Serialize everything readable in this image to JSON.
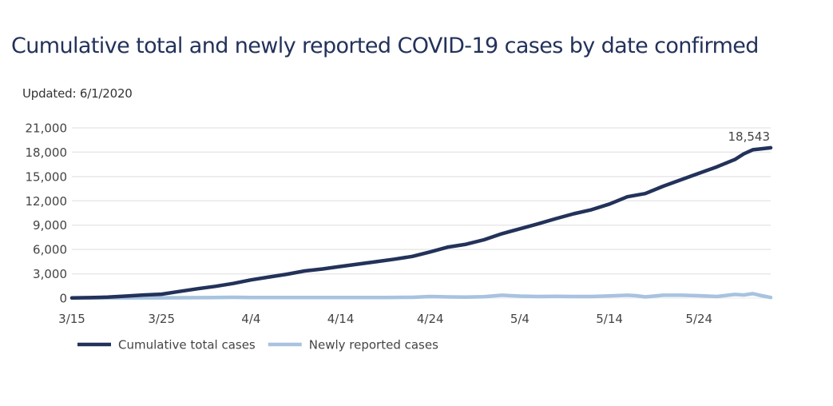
{
  "chart_data": {
    "type": "line",
    "title": "Cumulative total and newly reported COVID-19 cases by date confirmed",
    "subtitle": "Updated: 6/1/2020",
    "xlabel": "",
    "ylabel": "",
    "x_start_date": "2020-03-15",
    "x_end_date": "2020-06-01",
    "x_ticks": [
      "3/15",
      "3/25",
      "4/4",
      "4/14",
      "4/24",
      "5/4",
      "5/14",
      "5/24"
    ],
    "x_tick_day_offsets": [
      0,
      10,
      20,
      30,
      40,
      50,
      60,
      70
    ],
    "ylim": [
      0,
      21000
    ],
    "y_ticks": [
      0,
      3000,
      6000,
      9000,
      12000,
      15000,
      18000,
      21000
    ],
    "y_tick_labels": [
      "0",
      "3,000",
      "6,000",
      "9,000",
      "12,000",
      "15,000",
      "18,000",
      "21,000"
    ],
    "grid": true,
    "legend_position": "bottom-left",
    "annotations": [
      {
        "series": "Cumulative total cases",
        "date": "6/1",
        "label": "18,543",
        "value": 18543
      }
    ],
    "series": [
      {
        "name": "Cumulative total cases",
        "color": "#23325a",
        "day_offsets": [
          0,
          2,
          4,
          6,
          8,
          10,
          12,
          14,
          16,
          18,
          20,
          22,
          24,
          26,
          28,
          30,
          32,
          34,
          36,
          38,
          40,
          42,
          44,
          46,
          48,
          50,
          52,
          54,
          56,
          58,
          60,
          62,
          64,
          66,
          68,
          70,
          72,
          74,
          75,
          76,
          78
        ],
        "values": [
          20,
          60,
          120,
          250,
          380,
          480,
          820,
          1150,
          1450,
          1800,
          2250,
          2600,
          2950,
          3350,
          3600,
          3900,
          4200,
          4500,
          4800,
          5150,
          5700,
          6300,
          6650,
          7200,
          7950,
          8550,
          9150,
          9800,
          10400,
          10900,
          11600,
          12500,
          12900,
          13800,
          14600,
          15400,
          16200,
          17100,
          17800,
          18300,
          18543
        ]
      },
      {
        "name": "Newly reported cases",
        "color": "#a7c3e0",
        "day_offsets": [
          0,
          5,
          10,
          15,
          18,
          20,
          25,
          30,
          35,
          38,
          40,
          42,
          44,
          46,
          48,
          50,
          52,
          54,
          56,
          58,
          60,
          62,
          63,
          64,
          66,
          68,
          70,
          72,
          74,
          75,
          76,
          77,
          78
        ],
        "values": [
          10,
          20,
          40,
          60,
          100,
          80,
          80,
          80,
          80,
          100,
          200,
          150,
          120,
          180,
          350,
          250,
          200,
          220,
          200,
          200,
          280,
          350,
          300,
          150,
          350,
          350,
          300,
          200,
          450,
          380,
          550,
          300,
          80
        ]
      }
    ]
  }
}
